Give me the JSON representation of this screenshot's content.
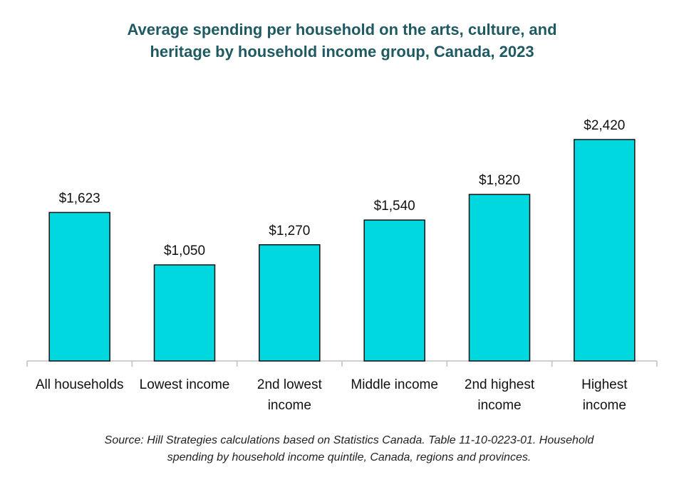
{
  "title_lines": [
    "Average spending per household on the arts, culture, and",
    "heritage by household income group, Canada, 2023"
  ],
  "source_lines": [
    "Source: Hill Strategies calculations based on Statistics Canada. Table 11-10-0223-01. Household",
    "spending by household income quintile, Canada, regions and provinces."
  ],
  "colors": {
    "bar_fill": "#00d8e0",
    "bar_stroke": "#111111",
    "title": "#1f5a63",
    "axis": "#bfbfbf",
    "text": "#111111"
  },
  "chart_data": {
    "type": "bar",
    "title": "Average spending per household on the arts, culture, and heritage by household income group, Canada, 2023",
    "categories": [
      [
        "All households"
      ],
      [
        "Lowest income"
      ],
      [
        "2nd lowest",
        "income"
      ],
      [
        "Middle income"
      ],
      [
        "2nd highest",
        "income"
      ],
      [
        "Highest",
        "income"
      ]
    ],
    "values": [
      1623,
      1050,
      1270,
      1540,
      1820,
      2420
    ],
    "value_labels": [
      "$1,623",
      "$1,050",
      "$1,270",
      "$1,540",
      "$1,820",
      "$2,420"
    ],
    "xlabel": "",
    "ylabel": "",
    "ylim": [
      0,
      2420
    ],
    "grid": false,
    "legend": "none"
  }
}
